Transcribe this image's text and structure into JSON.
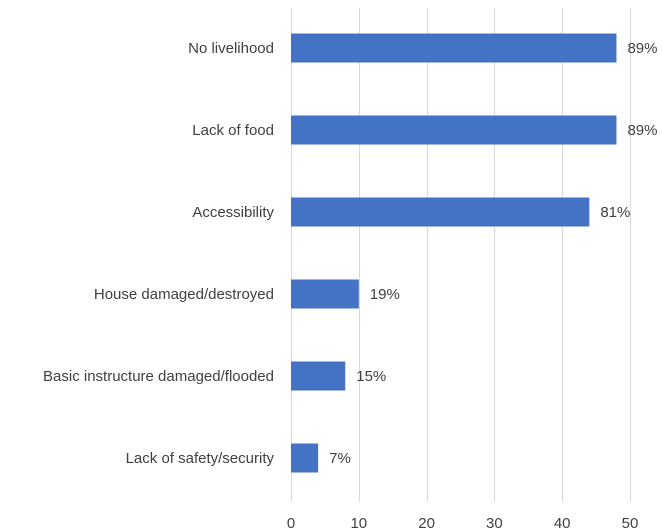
{
  "chart_data": {
    "type": "bar",
    "orientation": "horizontal",
    "title": "",
    "xlabel": "",
    "ylabel": "",
    "xlim": [
      0,
      50
    ],
    "x_ticks": [
      0,
      10,
      20,
      30,
      40,
      50
    ],
    "grid": "vertical",
    "legend": "none",
    "bar_color": "#4472c4",
    "categories": [
      "No livelihood",
      "Lack of food",
      "Accessibility",
      "House damaged/destroyed",
      "Basic instructure damaged/flooded",
      "Lack of safety/security"
    ],
    "values": [
      48,
      48,
      44,
      10,
      8,
      4
    ],
    "data_labels": [
      "89%",
      "89%",
      "81%",
      "19%",
      "15%",
      "7%"
    ]
  }
}
